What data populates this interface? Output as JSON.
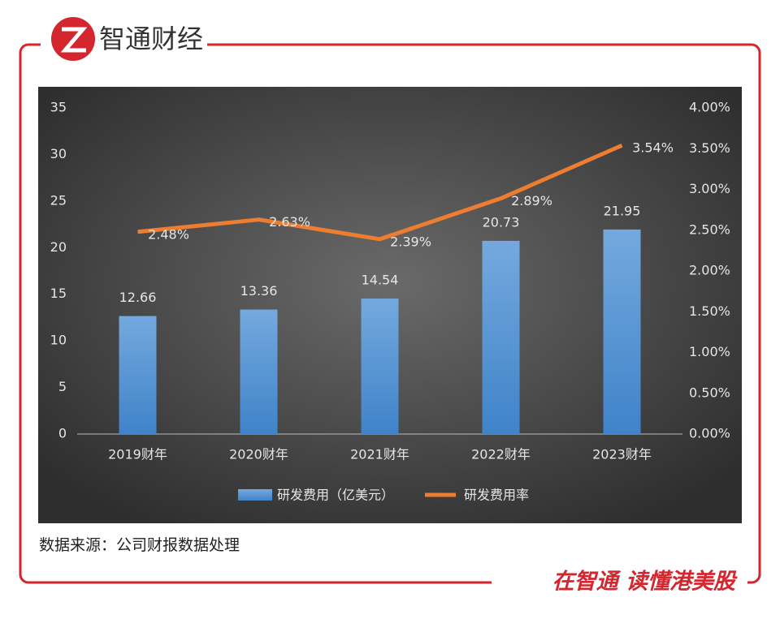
{
  "header": {
    "brand": "智通财经"
  },
  "chart_data": {
    "type": "bar-line",
    "categories": [
      "2019财年",
      "2020财年",
      "2021财年",
      "2022财年",
      "2023财年"
    ],
    "series": [
      {
        "name": "研发费用（亿美元）",
        "type": "bar",
        "color": "#5b9bd5",
        "values": [
          12.66,
          13.36,
          14.54,
          20.73,
          21.95
        ]
      },
      {
        "name": "研发费用率",
        "type": "line",
        "axis": "y2",
        "color": "#ed7d31",
        "values": [
          2.48,
          2.63,
          2.39,
          2.89,
          3.54
        ],
        "value_labels": [
          "2.48%",
          "2.63%",
          "2.39%",
          "2.89%",
          "3.54%"
        ]
      }
    ],
    "ylim": [
      0,
      35
    ],
    "yticks": [
      0,
      5,
      10,
      15,
      20,
      25,
      30,
      35
    ],
    "y2lim": [
      0,
      4
    ],
    "y2ticks": [
      {
        "value": 0,
        "label": "0.00%"
      },
      {
        "value": 0.5,
        "label": "0.50%"
      },
      {
        "value": 1,
        "label": "1.00%"
      },
      {
        "value": 1.5,
        "label": "1.50%"
      },
      {
        "value": 2,
        "label": "2.00%"
      },
      {
        "value": 2.5,
        "label": "2.50%"
      },
      {
        "value": 3,
        "label": "3.00%"
      },
      {
        "value": 3.5,
        "label": "3.50%"
      },
      {
        "value": 4,
        "label": "4.00%"
      }
    ],
    "legend": "bottom"
  },
  "footer": {
    "source": "数据来源：公司财报数据处理",
    "slogan": "在智通 读懂港美股"
  }
}
